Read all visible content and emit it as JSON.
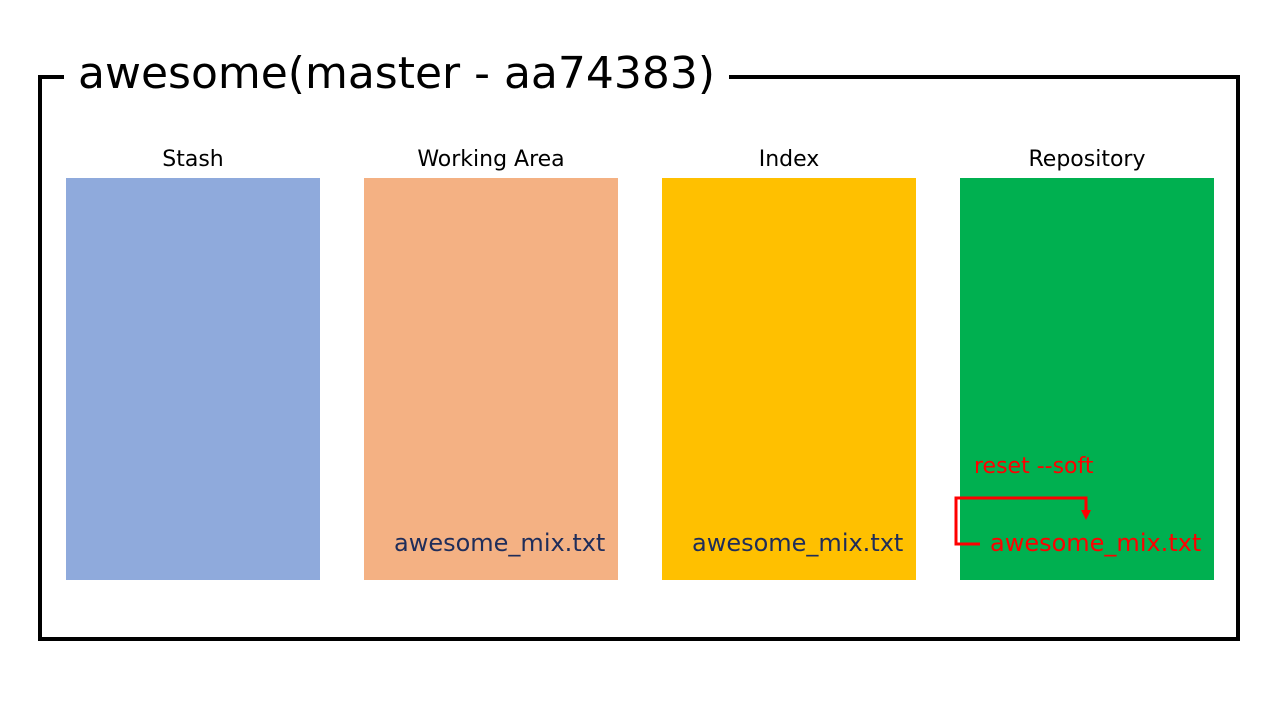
{
  "title": "awesome(master - aa74383)",
  "columns": [
    {
      "label": "Stash",
      "color": "#8faadc",
      "file": ""
    },
    {
      "label": "Working Area",
      "color": "#f4b183",
      "file": "awesome_mix.txt",
      "file_color": "#1f2d5a"
    },
    {
      "label": "Index",
      "color": "#ffc000",
      "file": "awesome_mix.txt",
      "file_color": "#1f2d5a"
    },
    {
      "label": "Repository",
      "color": "#00b050",
      "file": "awesome_mix.txt",
      "file_color": "#ff0000"
    }
  ],
  "command": {
    "label": "reset --soft",
    "color": "#ff0000"
  }
}
